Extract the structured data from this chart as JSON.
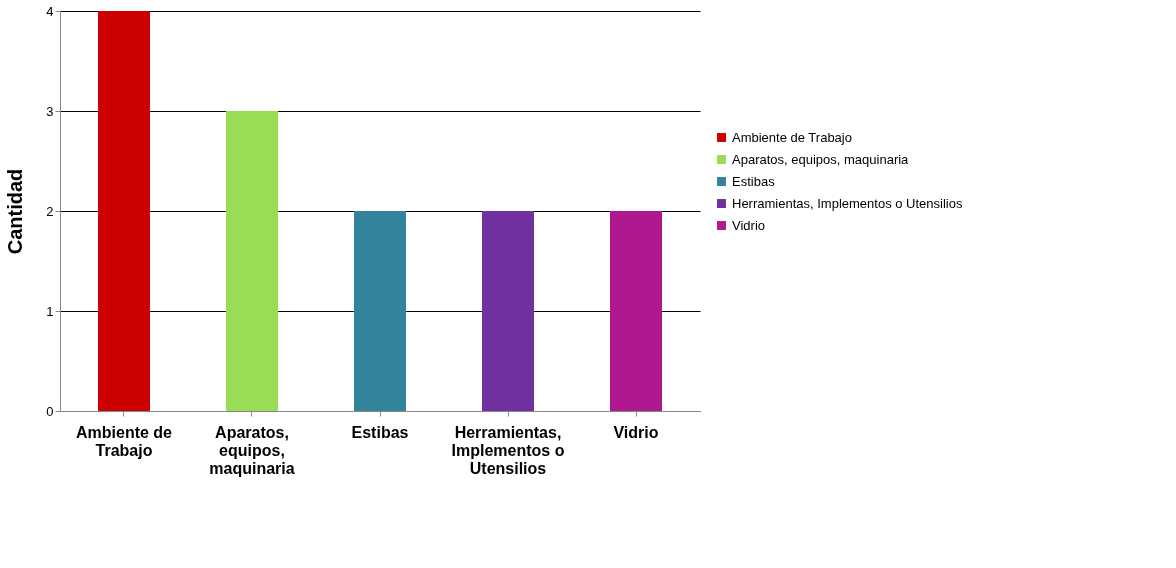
{
  "chart_data": {
    "type": "bar",
    "ylabel": "Cantidad",
    "categories": [
      "Ambiente de Trabajo",
      "Aparatos, equipos, maquinaria",
      "Estibas",
      "Herramientas, Implementos o Utensilios",
      "Vidrio"
    ],
    "series": [
      {
        "name": "Ambiente de Trabajo",
        "color": "#cc0000",
        "values": [
          4,
          null,
          null,
          null,
          null
        ]
      },
      {
        "name": "Aparatos, equipos, maquinaria",
        "color": "#99dd55",
        "values": [
          null,
          3,
          null,
          null,
          null
        ]
      },
      {
        "name": "Estibas",
        "color": "#31849b",
        "values": [
          null,
          null,
          2,
          null,
          null
        ]
      },
      {
        "name": "Herramientas, Implementos o Utensilios",
        "color": "#7030a0",
        "values": [
          null,
          null,
          null,
          2,
          null
        ]
      },
      {
        "name": "Vidrio",
        "color": "#b0188f",
        "values": [
          null,
          null,
          null,
          null,
          2
        ]
      }
    ],
    "ylim": [
      0,
      4
    ],
    "yticks": [
      0,
      1,
      2,
      3,
      4
    ],
    "grid": "y",
    "legend": "right"
  }
}
